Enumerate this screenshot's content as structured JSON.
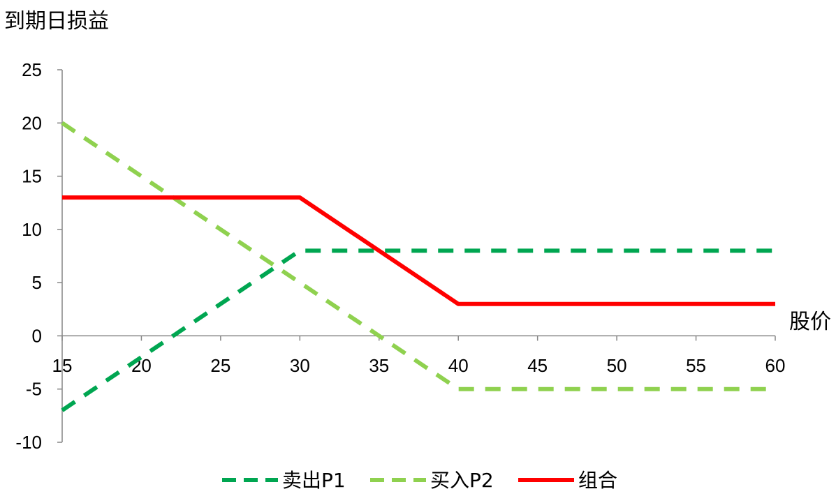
{
  "chart_data": {
    "type": "line",
    "title": "",
    "ylabel": "到期日损益",
    "xlabel": "股价",
    "xlim": [
      15,
      60
    ],
    "ylim": [
      -10,
      25
    ],
    "x_ticks": [
      "15",
      "20",
      "25",
      "30",
      "35",
      "40",
      "45",
      "50",
      "55",
      "60"
    ],
    "y_ticks": [
      "25",
      "20",
      "15",
      "10",
      "5",
      "0",
      "-5",
      "-10"
    ],
    "grid": false,
    "legend": "bottom",
    "series": [
      {
        "name": "卖出P1",
        "style": "dashed",
        "color": "#00a651",
        "x": [
          15,
          30,
          60
        ],
        "y": [
          -7,
          8,
          8
        ]
      },
      {
        "name": "买入P2",
        "style": "dashed",
        "color": "#8fd14f",
        "x": [
          15,
          40,
          60
        ],
        "y": [
          20,
          -5,
          -5
        ]
      },
      {
        "name": "组合",
        "style": "solid",
        "color": "#ff0000",
        "x": [
          15,
          30,
          40,
          60
        ],
        "y": [
          13,
          13,
          3,
          3
        ]
      }
    ]
  }
}
